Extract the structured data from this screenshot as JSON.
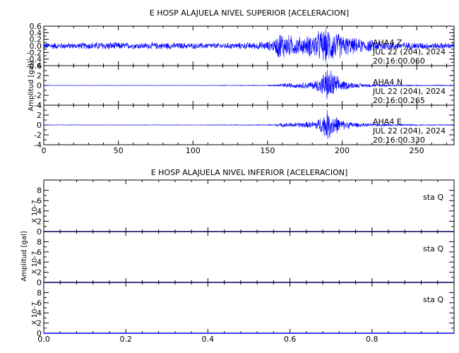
{
  "chart_data": [
    {
      "type": "line",
      "title": "E HOSP ALAJUELA NIVEL SUPERIOR [ACELERACION]",
      "ylabel": "Amplitud  [gal]",
      "xlim": [
        0,
        275
      ],
      "x_ticks": [
        0,
        50,
        100,
        150,
        200,
        250
      ],
      "x_tick_labels": [
        "0",
        "50",
        "100",
        "150",
        "200",
        "250"
      ],
      "grid": false,
      "series_color": "#0000ff",
      "panels": [
        {
          "name": "AHA4  Z",
          "ylim": [
            -0.6,
            0.6
          ],
          "y_ticks": [
            -0.6,
            -0.4,
            -0.2,
            0.0,
            0.2,
            0.4,
            0.6
          ],
          "y_tick_labels": [
            "-0.6",
            "-0.4",
            "-0.2",
            "0.0",
            "0.2",
            "0.4",
            "0.6"
          ],
          "annotation": [
            "AHA4  Z",
            "JUL 22 (204), 2024",
            "20:16:00.060"
          ],
          "envelope": {
            "x": [
              0,
              20,
              40,
              60,
              80,
              100,
              120,
              140,
              150,
              155,
              158,
              165,
              175,
              182,
              186,
              190,
              193,
              196,
              200,
              205,
              210,
              220,
              230,
              250,
              275
            ],
            "amp": [
              0.12,
              0.1,
              0.14,
              0.1,
              0.12,
              0.1,
              0.1,
              0.12,
              0.15,
              0.22,
              0.5,
              0.35,
              0.3,
              0.45,
              0.55,
              0.6,
              0.55,
              0.48,
              0.38,
              0.3,
              0.25,
              0.2,
              0.15,
              0.12,
              0.1
            ]
          }
        },
        {
          "name": "AHA4  N",
          "ylim": [
            -4,
            4
          ],
          "y_ticks": [
            -4,
            -2,
            0,
            2,
            4
          ],
          "y_tick_labels": [
            "-4",
            "-2",
            "0",
            "2",
            "4"
          ],
          "annotation": [
            "AHA4  N",
            "JUL 22 (204), 2024",
            "20:16:00.265"
          ],
          "envelope": {
            "x": [
              0,
              100,
              150,
              155,
              160,
              170,
              180,
              185,
              190,
              193,
              196,
              200,
              205,
              210,
              220,
              230,
              250,
              275
            ],
            "amp": [
              0.05,
              0.05,
              0.1,
              0.25,
              0.5,
              0.6,
              0.9,
              1.8,
              3.8,
              3.5,
              2.2,
              1.2,
              0.8,
              0.5,
              0.35,
              0.25,
              0.15,
              0.1
            ]
          }
        },
        {
          "name": "AHA4  E",
          "ylim": [
            -4,
            4
          ],
          "y_ticks": [
            -4,
            -2,
            0,
            2,
            4
          ],
          "y_tick_labels": [
            "-4",
            "-2",
            "0",
            "2",
            "4"
          ],
          "annotation": [
            "AHA4  E",
            "JUL 22 (204), 2024",
            "20:16:00.330"
          ],
          "envelope": {
            "x": [
              0,
              100,
              150,
              155,
              160,
              170,
              180,
              185,
              190,
              193,
              196,
              200,
              205,
              210,
              220,
              230,
              250,
              275
            ],
            "amp": [
              0.05,
              0.05,
              0.1,
              0.25,
              0.45,
              0.55,
              0.8,
              1.6,
              3.4,
              3.0,
              2.0,
              1.1,
              0.8,
              0.5,
              0.35,
              0.25,
              0.15,
              0.1
            ]
          }
        }
      ]
    },
    {
      "type": "line",
      "title": "E HOSP ALAJUELA NIVEL INFERIOR [ACELERACION]",
      "ylabel": "Amplitud  [gal]",
      "y_scale_label": "X 10-7",
      "xlim": [
        0,
        1
      ],
      "x_ticks": [
        0,
        0.2,
        0.4,
        0.6,
        0.8
      ],
      "x_tick_labels": [
        "0.0",
        "0.2",
        "0.4",
        "0.6",
        "0.8"
      ],
      "grid": false,
      "series_color": "#0000ff",
      "panels": [
        {
          "name": "sta  Q",
          "ylim": [
            0,
            10
          ],
          "y_ticks": [
            0,
            2,
            4,
            6,
            8
          ],
          "y_tick_labels": [
            "0",
            "2",
            "4",
            "6",
            "8"
          ],
          "annotation": [
            "sta  Q"
          ],
          "values": {
            "x": [
              0,
              1
            ],
            "y": [
              0,
              0
            ]
          }
        },
        {
          "name": "sta  Q",
          "ylim": [
            0,
            10
          ],
          "y_ticks": [
            0,
            2,
            4,
            6,
            8
          ],
          "y_tick_labels": [
            "0",
            "2",
            "4",
            "6",
            "8"
          ],
          "annotation": [
            "sta  Q"
          ],
          "values": {
            "x": [
              0,
              1
            ],
            "y": [
              0,
              0
            ]
          }
        },
        {
          "name": "sta  Q",
          "ylim": [
            0,
            10
          ],
          "y_ticks": [
            0,
            2,
            4,
            6,
            8
          ],
          "y_tick_labels": [
            "0",
            "2",
            "4",
            "6",
            "8"
          ],
          "annotation": [
            "sta  Q"
          ],
          "values": {
            "x": [
              0,
              1
            ],
            "y": [
              0,
              0
            ]
          }
        }
      ]
    }
  ]
}
